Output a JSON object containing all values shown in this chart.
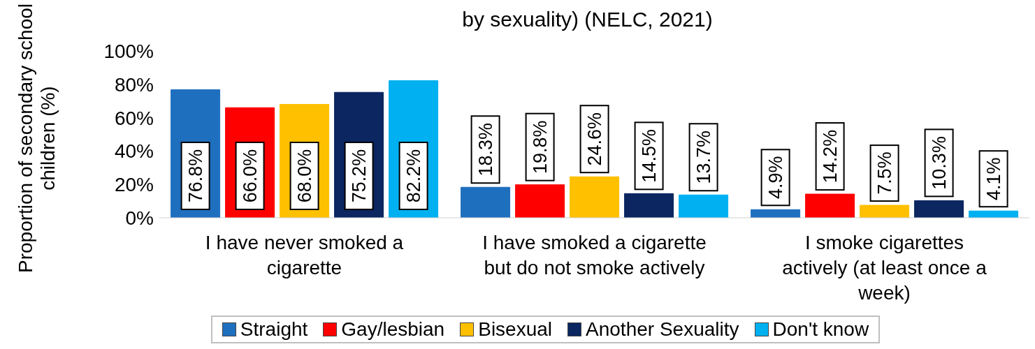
{
  "chart_data": {
    "type": "bar",
    "title": "by sexuality) (NELC, 2021)",
    "ylabel": "Proportion of secondary school children (%)",
    "categories": [
      "I have never smoked a cigarette",
      "I have smoked a cigarette but do not smoke actively",
      "I smoke cigarettes actively (at least once a week)"
    ],
    "series": [
      {
        "name": "Straight",
        "color": "#1f6fbf",
        "values": [
          76.8,
          18.3,
          4.9
        ],
        "value_labels": [
          "76.8%",
          "18.3%",
          "4.9%"
        ]
      },
      {
        "name": "Gay/lesbian",
        "color": "#ff0000",
        "values": [
          66.0,
          19.8,
          14.2
        ],
        "value_labels": [
          "66.0%",
          "19.8%",
          "14.2%"
        ]
      },
      {
        "name": "Bisexual",
        "color": "#ffc000",
        "values": [
          68.0,
          24.6,
          7.5
        ],
        "value_labels": [
          "68.0%",
          "24.6%",
          "7.5%"
        ]
      },
      {
        "name": "Another Sexuality",
        "color": "#0b2660",
        "values": [
          75.2,
          14.5,
          10.3
        ],
        "value_labels": [
          "75.2%",
          "14.5%",
          "10.3%"
        ]
      },
      {
        "name": "Don't know",
        "color": "#00b0f0",
        "values": [
          82.2,
          13.7,
          4.1
        ],
        "value_labels": [
          "82.2%",
          "13.7%",
          "4.1%"
        ]
      }
    ],
    "ylim": [
      0,
      100
    ],
    "yticks": [
      {
        "value": 0,
        "label": "0%"
      },
      {
        "value": 20,
        "label": "20%"
      },
      {
        "value": 40,
        "label": "40%"
      },
      {
        "value": 60,
        "label": "60%"
      },
      {
        "value": 80,
        "label": "80%"
      },
      {
        "value": 100,
        "label": "100%"
      }
    ],
    "grid": false,
    "legend": "bottom"
  }
}
